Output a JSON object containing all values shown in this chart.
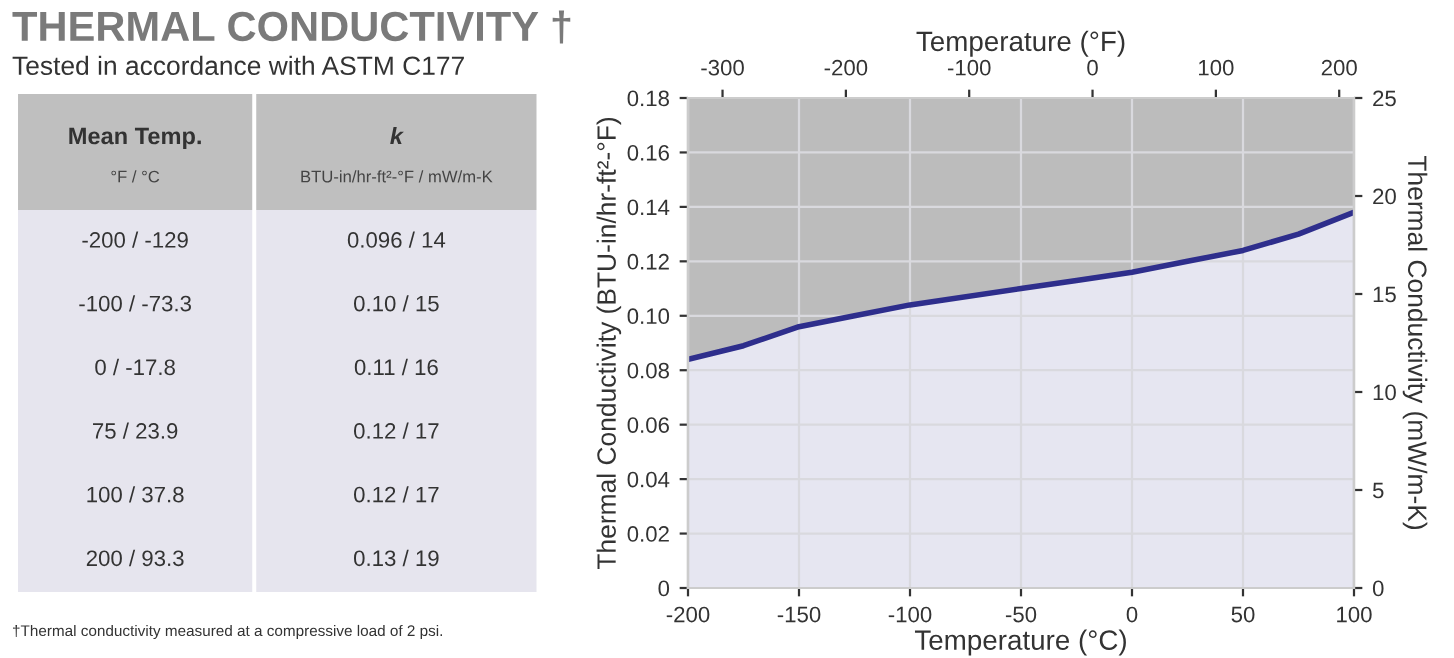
{
  "chart_data": [
    {
      "type": "other",
      "title": "THERMAL CONDUCTIVITY †",
      "subtitle": "Tested in accordance with ASTM C177",
      "categories": [
        "Mean Temp.",
        "k"
      ],
      "y_categories": [
        "°F / °C",
        "BTU-in/hr-ft²-°F / mW/m-K"
      ],
      "cell_labels": [
        [
          "-200 / -129",
          "0.096 / 14"
        ],
        [
          "-100 / -73.3",
          "0.10 / 15"
        ],
        [
          "0 / -17.8",
          "0.11 / 16"
        ],
        [
          "75 / 23.9",
          "0.12 / 17"
        ],
        [
          "100 / 37.8",
          "0.12 / 17"
        ],
        [
          "200 / 93.3",
          "0.13 / 19"
        ]
      ],
      "annotations": [
        "†Thermal conductivity measured at a compressive load of 2 psi."
      ]
    },
    {
      "type": "area",
      "xlabel": "Temperature (°C)",
      "x2label": "Temperature (°F)",
      "ylabel": "Thermal Conductivity (BTU-in/hr-ft²-°F)",
      "y2label": "Thermal Conductivity (mW/m-K)",
      "series": [
        {
          "color": "#2e2e8c",
          "x": [
            -200,
            -175,
            -150,
            -125,
            -100,
            -50,
            -25,
            0,
            25,
            50,
            75,
            100
          ],
          "values": [
            0.084,
            0.089,
            0.096,
            0.1,
            0.104,
            0.11,
            0.113,
            0.116,
            0.12,
            0.124,
            0.13,
            0.138
          ]
        }
      ],
      "xlim": [
        -200,
        100
      ],
      "xticks": [
        -200,
        -150,
        -100,
        -50,
        0,
        50,
        100
      ],
      "x2lim": [
        -328,
        212
      ],
      "x2ticks": [
        -300,
        -200,
        -100,
        0,
        100,
        200
      ],
      "ylim": [
        0,
        0.18
      ],
      "yticks": [
        0,
        0.02,
        0.04,
        0.06,
        0.08,
        {
          "value": 0.1,
          "label": "0.10"
        },
        0.12,
        0.14,
        0.16,
        0.18
      ],
      "y2lim": [
        0,
        25
      ],
      "y2ticks": [
        0,
        5,
        10,
        15,
        20,
        25
      ],
      "grid": true,
      "marker": "none",
      "line_style": "solid"
    }
  ]
}
